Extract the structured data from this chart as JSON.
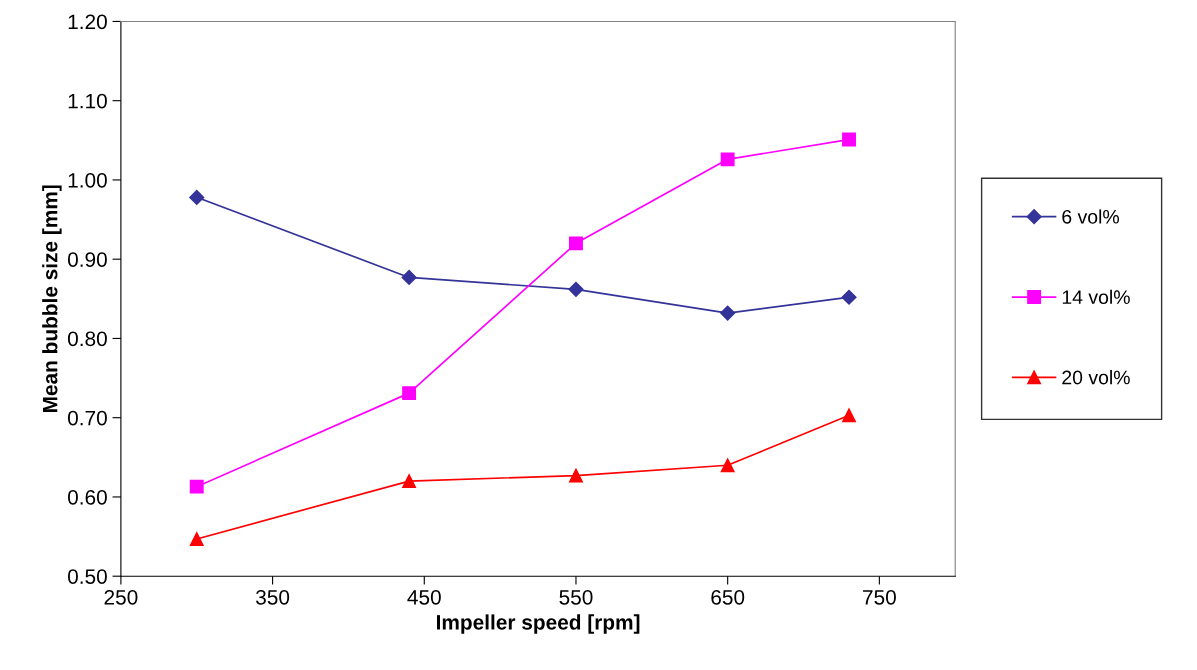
{
  "chart_data": {
    "type": "line",
    "xlabel": "Impeller speed [rpm]",
    "ylabel": "Mean bubble size [mm]",
    "x": [
      300,
      440,
      550,
      650,
      730
    ],
    "series": [
      {
        "name": "6 vol%",
        "color": "#333399",
        "marker": "diamond",
        "values": [
          0.978,
          0.877,
          0.862,
          0.832,
          0.852
        ]
      },
      {
        "name": "14 vol%",
        "color": "#ff00ff",
        "marker": "square",
        "values": [
          0.613,
          0.731,
          0.92,
          1.026,
          1.051
        ]
      },
      {
        "name": "20 vol%",
        "color": "#ff0000",
        "marker": "triangle",
        "values": [
          0.547,
          0.62,
          0.627,
          0.64,
          0.703
        ]
      }
    ],
    "xlim": [
      250,
      800
    ],
    "xticks": [
      250,
      350,
      450,
      550,
      650,
      750
    ],
    "ylim": [
      0.5,
      1.2
    ],
    "yticks": [
      {
        "value": 0.5,
        "label": "0.50"
      },
      {
        "value": 0.6,
        "label": "0.60"
      },
      {
        "value": 0.7,
        "label": "0.70"
      },
      {
        "value": 0.8,
        "label": "0.80"
      },
      {
        "value": 0.9,
        "label": "0.90"
      },
      {
        "value": 1.0,
        "label": "1.00"
      },
      {
        "value": 1.1,
        "label": "1.10"
      },
      {
        "value": 1.2,
        "label": "1.20"
      }
    ],
    "grid": false,
    "legend": "right",
    "line_style": "solid"
  }
}
